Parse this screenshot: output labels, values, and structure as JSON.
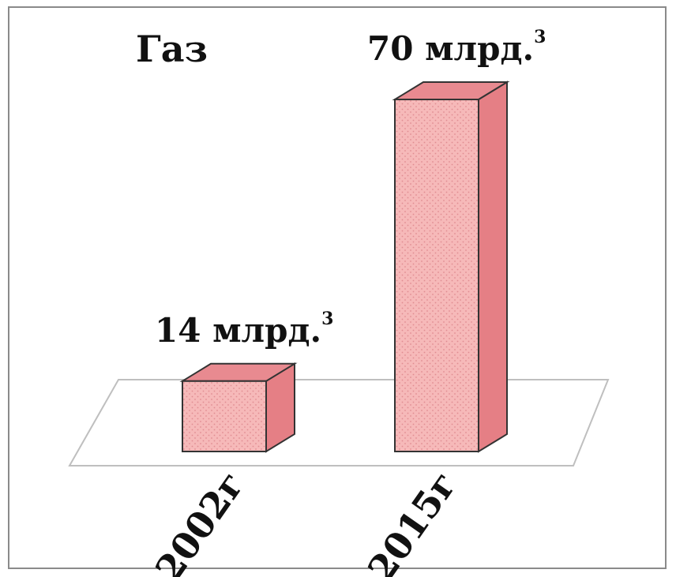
{
  "chart_data": {
    "type": "bar",
    "title": "Газ",
    "categories": [
      "2002г",
      "2015г"
    ],
    "values": [
      14,
      70
    ],
    "data_labels": [
      {
        "text": "14 млрд.",
        "sup": "3"
      },
      {
        "text": "70 млрд.",
        "sup": "3"
      }
    ],
    "ylim": [
      0,
      70
    ],
    "grid": false,
    "legend": "none",
    "style": "3d",
    "colors": {
      "front": "#f6b9b9",
      "side": "#e57f85",
      "top": "#e88a90",
      "edge": "#333333",
      "floor": "#bfbfbf"
    }
  }
}
